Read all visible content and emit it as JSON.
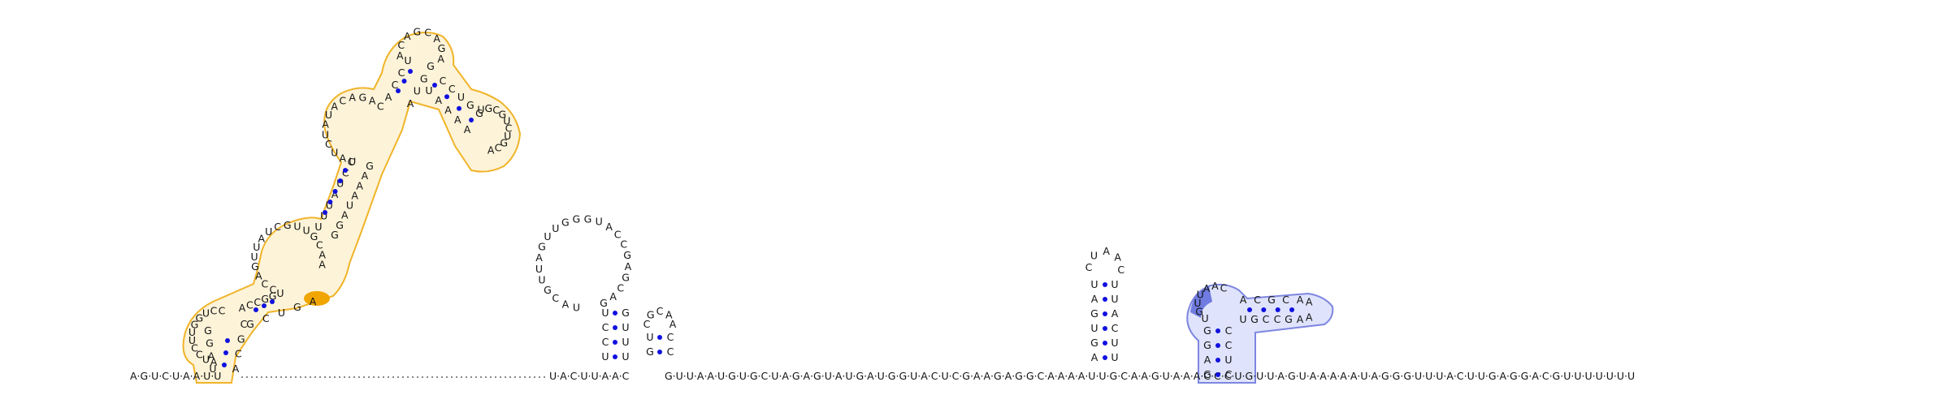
{
  "sequence": {
    "line": "AGUCUAAUUCGUCUACGACCGGUGCCCCCCACCCCAGCCAUCUGCCUAUUUAUCCGUGACCGCGCUGCCAGGCCACCGGAUUCCAAGUGUACUACUUAACGUUAAUGUGCUAGAGUAUGAUGGUACUCGAAGAGGCAAAAUUGCAAGUAAACCCUGUUAGUAAAAAUAGGGUUUACUUGAGGACGUUUUUUU"
  },
  "baseline_segments": [
    {
      "id": "left",
      "text": "AGUCUAAUU"
    },
    {
      "id": "gap",
      "text": ""
    },
    {
      "id": "mid1",
      "text": "UACUUAAC"
    },
    {
      "id": "mid2",
      "text": "GUUAAUGUGCUAGAGUAUGAUGGUACUCGAAGAGGCAAAAUUGCAAGUAAACCCUGUUAGUAAAAAUAGGGUUUACUUGAGGACGUUUUUUU"
    }
  ],
  "helices": {
    "yellow_domain": {
      "stem1_left": "UAGG",
      "loop1": "AUCCUUGGUCCCA",
      "stem1_right": "AGUACC",
      "loop2": "CCAGUUAUCGUUGCAAC",
      "junction_upper": "UAUCUACGACAGACCGUUUGGAUCCAUCUGCAAAAGAGGUGGAAGCGAAUACCAGGGACACCGCCGAAG",
      "hairpin_top": "ACAGCAG",
      "right_hairpin": "UGCGUCUGCA"
    },
    "middle_stem": {
      "stem": "UACU",
      "loop": "UACGUUAGUUGGGUACCGAGCAGCAC"
    },
    "small_stem": {
      "stem": "UG",
      "loop": "CGCAA"
    },
    "right_stem": {
      "stem": "AUGUGCAUA",
      "loop": "CUAAC"
    },
    "blue_domain": {
      "stem_left": "GGAU",
      "loop_left": "UGUUAAC",
      "arm_top": "ACGCA",
      "arm_bottom": "UGCCGA",
      "stem_right": "CCUC",
      "tip": "AA"
    }
  },
  "colors": {
    "yellow_outline": "#f0b429",
    "yellow_fill": "#fdf3d8",
    "yellow_highlight": "#f0a500",
    "blue_outline": "#7d86e0",
    "blue_fill": "#dfe3fb",
    "blue_highlight": "#6f7be0",
    "pair_dot": "#1010e0",
    "text": "#111111"
  }
}
